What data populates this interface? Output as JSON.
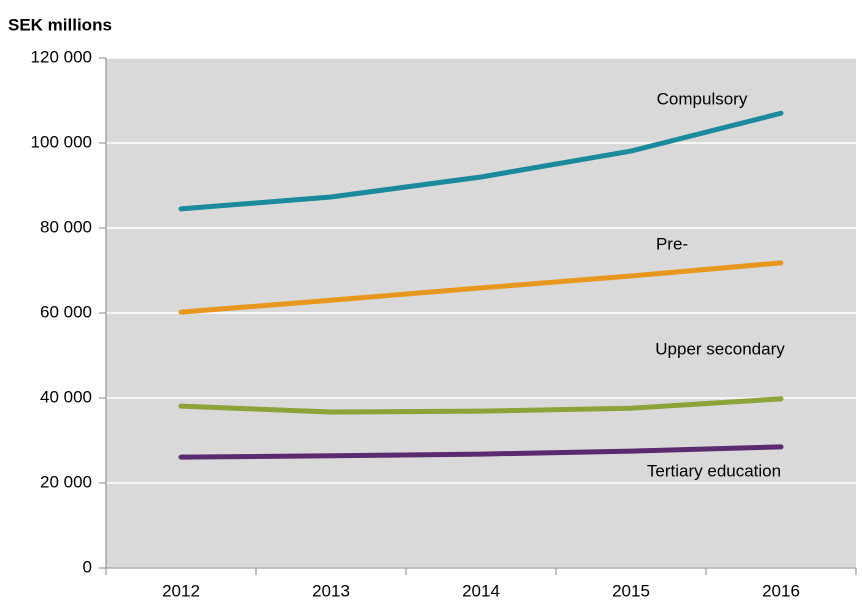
{
  "chart_data": {
    "type": "line",
    "y_axis_label": "SEK millions",
    "categories": [
      "2012",
      "2013",
      "2014",
      "2015",
      "2016"
    ],
    "series": [
      {
        "name": "Compulsory",
        "color": "#1a8a9c",
        "values": [
          84500,
          87300,
          92000,
          98100,
          107000
        ]
      },
      {
        "name": "Pre-",
        "color": "#e8971e",
        "values": [
          60200,
          63000,
          65900,
          68700,
          71800
        ]
      },
      {
        "name": "Upper secondary",
        "color": "#8ca33a",
        "values": [
          38100,
          36700,
          36900,
          37600,
          39800
        ]
      },
      {
        "name": "Tertiary education",
        "color": "#5c2a6e",
        "values": [
          26100,
          26400,
          26800,
          27500,
          28500
        ]
      }
    ],
    "ylim": [
      0,
      120000
    ],
    "yticks": [
      0,
      {
        "value": 20000,
        "label": "20 000"
      },
      {
        "value": 40000,
        "label": "40 000"
      },
      {
        "value": 60000,
        "label": "60 000"
      },
      {
        "value": 80000,
        "label": "80 000"
      },
      {
        "value": 100000,
        "label": "100 000"
      },
      {
        "value": 120000,
        "label": "120 000"
      }
    ],
    "grid": true
  }
}
